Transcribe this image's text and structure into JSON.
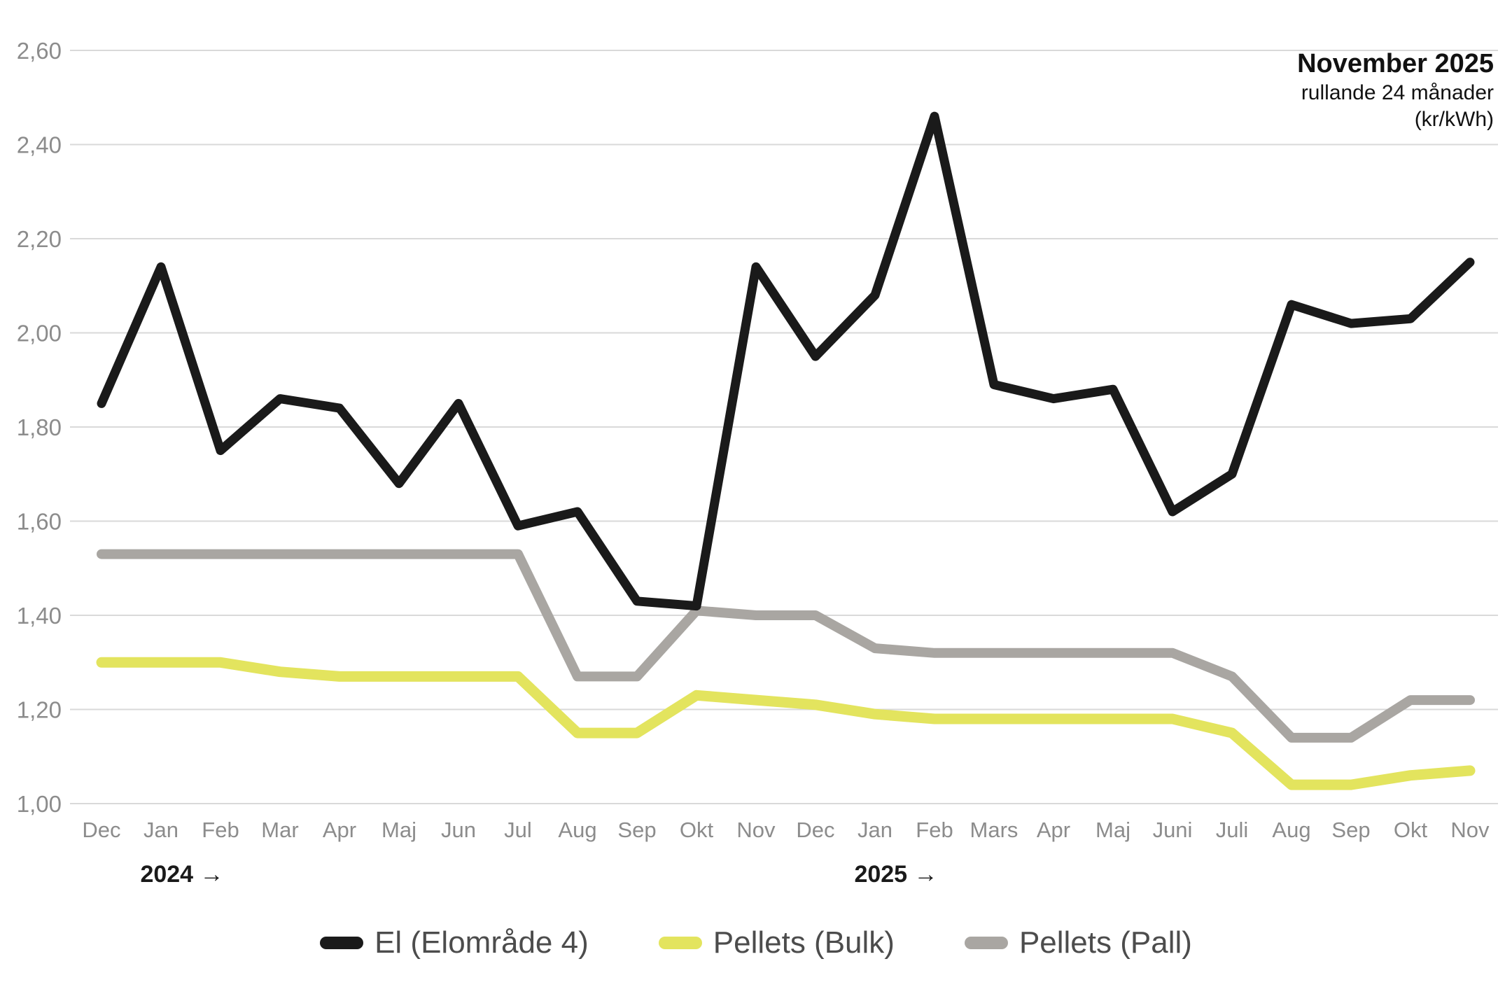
{
  "title": {
    "line1": "November 2025",
    "line2": "rullande 24 månader",
    "line3": "(kr/kWh)"
  },
  "chart_data": {
    "type": "line",
    "categories": [
      "Dec",
      "Jan",
      "Feb",
      "Mar",
      "Apr",
      "Maj",
      "Jun",
      "Jul",
      "Aug",
      "Sep",
      "Okt",
      "Nov",
      "Dec",
      "Jan",
      "Feb",
      "Mars",
      "Apr",
      "Maj",
      "Juni",
      "Juli",
      "Aug",
      "Sep",
      "Okt",
      "Nov"
    ],
    "year_markers": [
      {
        "label": "2024 →",
        "month_index": 1
      },
      {
        "label": "2025 →",
        "month_index": 13
      }
    ],
    "series": [
      {
        "name": "El (Elområde 4)",
        "color": "#1a1a1a",
        "values": [
          1.85,
          2.14,
          1.75,
          1.86,
          1.84,
          1.68,
          1.85,
          1.59,
          1.62,
          1.43,
          1.42,
          2.14,
          1.95,
          2.08,
          2.46,
          1.89,
          1.86,
          1.88,
          1.62,
          1.7,
          2.06,
          2.02,
          2.03,
          2.15
        ]
      },
      {
        "name": "Pellets (Bulk)",
        "color": "#e3e45e",
        "values": [
          1.3,
          1.3,
          1.3,
          1.28,
          1.27,
          1.27,
          1.27,
          1.27,
          1.15,
          1.15,
          1.23,
          1.22,
          1.21,
          1.19,
          1.18,
          1.18,
          1.18,
          1.18,
          1.18,
          1.15,
          1.04,
          1.04,
          1.06,
          1.07
        ]
      },
      {
        "name": "Pellets (Pall)",
        "color": "#a9a6a2",
        "values": [
          1.53,
          1.53,
          1.53,
          1.53,
          1.53,
          1.53,
          1.53,
          1.53,
          1.27,
          1.27,
          1.41,
          1.4,
          1.4,
          1.33,
          1.32,
          1.32,
          1.32,
          1.32,
          1.32,
          1.27,
          1.14,
          1.14,
          1.22,
          1.22
        ]
      }
    ],
    "ylim": [
      1.0,
      2.6
    ],
    "ytick_step": 0.2,
    "yticks": [
      {
        "v": 2.6,
        "label": "2,60"
      },
      {
        "v": 2.4,
        "label": "2,40"
      },
      {
        "v": 2.2,
        "label": "2,20"
      },
      {
        "v": 2.0,
        "label": "2,00"
      },
      {
        "v": 1.8,
        "label": "1,80"
      },
      {
        "v": 1.6,
        "label": "1,60"
      },
      {
        "v": 1.4,
        "label": "1,40"
      },
      {
        "v": 1.2,
        "label": "1,20"
      },
      {
        "v": 1.0,
        "label": "1,00"
      }
    ],
    "grid": true,
    "legend_position": "bottom",
    "colors": {
      "grid": "#d9d9d9",
      "axis_text": "#8c8c8c",
      "year_text": "#1a1a1a",
      "legend_text": "#4c4c4c"
    }
  }
}
